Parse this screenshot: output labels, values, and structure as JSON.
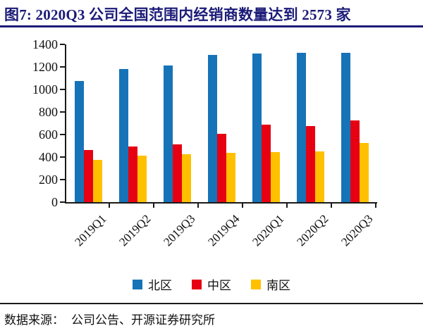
{
  "title": {
    "text": "图7:  2020Q3 公司全国范围内经销商数量达到 2573 家"
  },
  "footer": {
    "source_label": "数据来源：",
    "source_text": "公司公告、开源证券研究所"
  },
  "colors": {
    "title_navy": "#1B1B78",
    "axis_black": "#1A1A1A",
    "north_blue": "#1673B8",
    "central_red": "#E60012",
    "south_yellow": "#FFC000"
  },
  "chart_data": {
    "type": "bar",
    "title": "2020Q3 公司全国范围内经销商数量达到 2573 家",
    "categories": [
      "2019Q1",
      "2019Q2",
      "2019Q3",
      "2019Q4",
      "2020Q1",
      "2020Q2",
      "2020Q3"
    ],
    "series": [
      {
        "name": "北区",
        "color": "#1673B8",
        "values": [
          1075,
          1180,
          1210,
          1305,
          1320,
          1325,
          1325
        ]
      },
      {
        "name": "中区",
        "color": "#E60012",
        "values": [
          465,
          495,
          515,
          605,
          690,
          675,
          723
        ]
      },
      {
        "name": "南区",
        "color": "#FFC000",
        "values": [
          375,
          410,
          425,
          435,
          445,
          452,
          525
        ]
      }
    ],
    "xlabel": "",
    "ylabel": "",
    "ylim": [
      0,
      1400
    ],
    "y_ticks": [
      0,
      200,
      400,
      600,
      800,
      1000,
      1200,
      1400
    ],
    "grid": false,
    "legend_position": "bottom"
  }
}
